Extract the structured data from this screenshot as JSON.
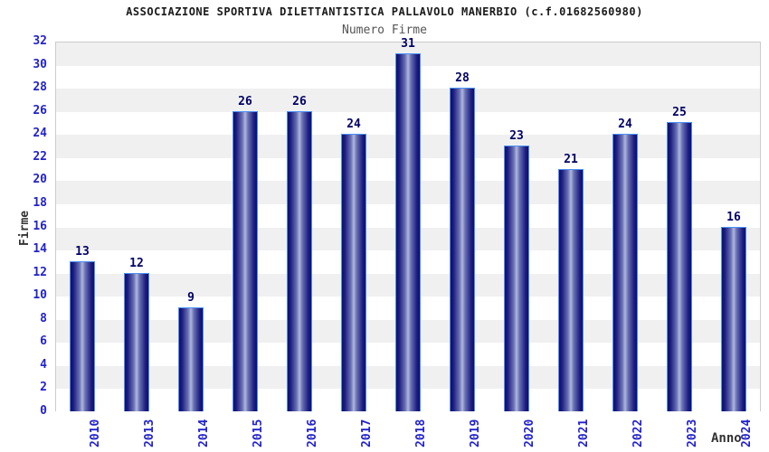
{
  "header": {
    "title": "ASSOCIAZIONE SPORTIVA DILETTANTISTICA PALLAVOLO MANERBIO (c.f.01682560980)",
    "subtitle": "Numero Firme"
  },
  "chart_data": {
    "type": "bar",
    "title": "ASSOCIAZIONE SPORTIVA DILETTANTISTICA PALLAVOLO MANERBIO (c.f.01682560980)",
    "subtitle": "Numero Firme",
    "categories": [
      "2010",
      "2013",
      "2014",
      "2015",
      "2016",
      "2017",
      "2018",
      "2019",
      "2020",
      "2021",
      "2022",
      "2023",
      "2024"
    ],
    "values": [
      13,
      12,
      9,
      26,
      26,
      24,
      31,
      28,
      23,
      21,
      24,
      25,
      16
    ],
    "xlabel": "Anno",
    "ylabel": "Firme",
    "ylim": [
      0,
      32
    ],
    "ytick_step": 2,
    "grid": "alternating horizontal gray/white bands every 2 units",
    "legend": "none",
    "bar_value_labels": true,
    "colors": {
      "bar_edge_dark": "#0f0f6e",
      "bar_center_light": "#b0b7dc",
      "bar_border": "#4a90f4",
      "tick_label": "#2222cc",
      "value_label": "#000066",
      "band_gray": "#f0f0f0",
      "plot_border": "#cccccc",
      "title": "#1a1a1a",
      "subtitle": "#555555",
      "axis_title": "#333333"
    }
  }
}
